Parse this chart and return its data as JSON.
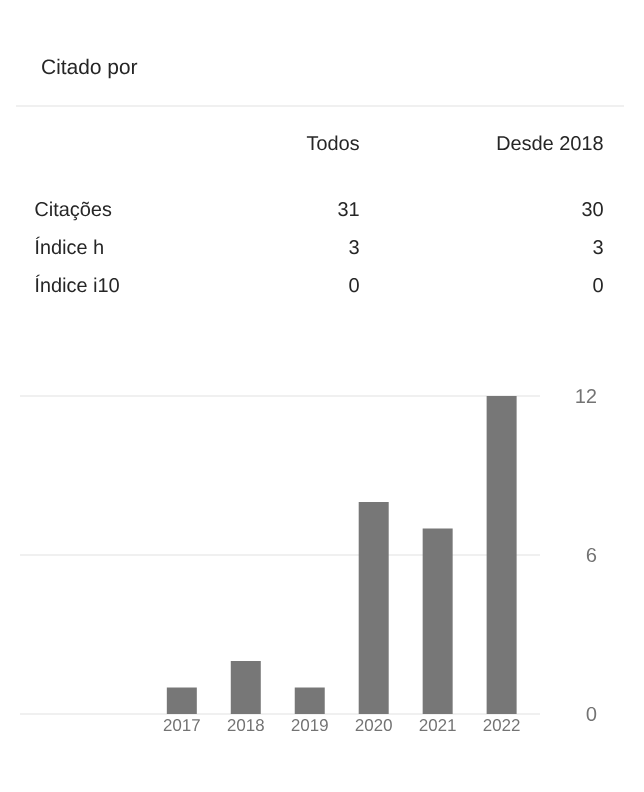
{
  "chart_data": {
    "type": "bar",
    "title": "Citado por",
    "annotations": [
      "Todos",
      "Desde 2018",
      "Citações",
      "31",
      "30",
      "Índice h",
      "3",
      "3",
      "Índice i10",
      "0",
      "0"
    ],
    "categories": [
      "2017",
      "2018",
      "2019",
      "2020",
      "2021",
      "2022"
    ],
    "values": [
      1,
      2,
      1,
      8,
      7,
      12
    ],
    "color": "#777777",
    "ylim": [
      0,
      12
    ],
    "yticks": [
      0,
      6,
      12
    ],
    "grid": "y"
  }
}
